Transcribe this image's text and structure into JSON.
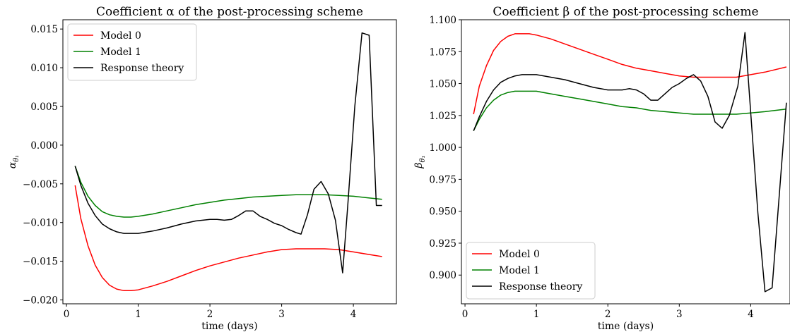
{
  "chart_data": [
    {
      "type": "line",
      "title": "Coefficient α of the post-processing scheme",
      "xlabel": "time (days)",
      "ylabel": "α",
      "ylabel_sub": "θ₁",
      "xlim": [
        -0.05,
        4.6
      ],
      "ylim": [
        -0.0205,
        0.0162
      ],
      "xticks": [
        0,
        1,
        2,
        3,
        4
      ],
      "yticks": [
        -0.02,
        -0.015,
        -0.01,
        -0.005,
        0.0,
        0.005,
        0.01,
        0.015
      ],
      "ytick_labels": [
        "−0.020",
        "−0.015",
        "−0.010",
        "−0.005",
        "0.000",
        "0.005",
        "0.010",
        "0.015"
      ],
      "legend_position": "top-left",
      "series": [
        {
          "name": "Model 0",
          "color": "#ff0000",
          "x": [
            0.12,
            0.2,
            0.3,
            0.4,
            0.5,
            0.6,
            0.7,
            0.8,
            0.9,
            1.0,
            1.2,
            1.4,
            1.6,
            1.8,
            2.0,
            2.2,
            2.4,
            2.6,
            2.8,
            3.0,
            3.2,
            3.4,
            3.6,
            3.8,
            4.0,
            4.2,
            4.4
          ],
          "y": [
            -0.0052,
            -0.0095,
            -0.013,
            -0.0155,
            -0.0171,
            -0.0181,
            -0.0186,
            -0.0188,
            -0.0188,
            -0.0187,
            -0.0182,
            -0.0176,
            -0.0169,
            -0.0162,
            -0.0156,
            -0.0151,
            -0.0146,
            -0.0142,
            -0.0138,
            -0.0135,
            -0.0134,
            -0.0134,
            -0.0134,
            -0.0135,
            -0.0138,
            -0.0141,
            -0.0144
          ]
        },
        {
          "name": "Model 1",
          "color": "#008000",
          "x": [
            0.12,
            0.2,
            0.3,
            0.4,
            0.5,
            0.6,
            0.7,
            0.8,
            0.9,
            1.0,
            1.2,
            1.4,
            1.6,
            1.8,
            2.0,
            2.2,
            2.4,
            2.6,
            2.8,
            3.0,
            3.2,
            3.4,
            3.6,
            3.8,
            4.0,
            4.2,
            4.4
          ],
          "y": [
            -0.0027,
            -0.0048,
            -0.0066,
            -0.0078,
            -0.0086,
            -0.009,
            -0.0092,
            -0.0093,
            -0.0093,
            -0.0092,
            -0.0089,
            -0.0085,
            -0.0081,
            -0.0077,
            -0.0074,
            -0.0071,
            -0.0069,
            -0.0067,
            -0.0066,
            -0.0065,
            -0.0064,
            -0.0064,
            -0.0064,
            -0.0065,
            -0.0066,
            -0.0068,
            -0.007
          ]
        },
        {
          "name": "Response theory",
          "color": "#000000",
          "x": [
            0.12,
            0.2,
            0.3,
            0.4,
            0.5,
            0.6,
            0.7,
            0.8,
            0.9,
            1.0,
            1.2,
            1.4,
            1.6,
            1.8,
            2.0,
            2.1,
            2.2,
            2.3,
            2.4,
            2.5,
            2.6,
            2.7,
            2.8,
            2.9,
            3.0,
            3.1,
            3.2,
            3.27,
            3.36,
            3.45,
            3.55,
            3.65,
            3.75,
            3.85,
            3.92,
            4.02,
            4.12,
            4.22,
            4.32,
            4.4
          ],
          "y": [
            -0.0027,
            -0.0052,
            -0.0075,
            -0.0091,
            -0.0102,
            -0.0108,
            -0.0112,
            -0.0114,
            -0.0114,
            -0.0114,
            -0.0111,
            -0.0107,
            -0.0102,
            -0.0098,
            -0.0096,
            -0.0096,
            -0.0097,
            -0.0096,
            -0.0091,
            -0.0085,
            -0.0085,
            -0.0092,
            -0.0096,
            -0.0101,
            -0.0104,
            -0.0109,
            -0.0113,
            -0.0115,
            -0.009,
            -0.0057,
            -0.0047,
            -0.0063,
            -0.0097,
            -0.0165,
            -0.008,
            0.005,
            0.0145,
            0.0142,
            -0.0078,
            -0.0078
          ]
        }
      ]
    },
    {
      "type": "line",
      "title": "Coefficient β of the post-processing scheme",
      "xlabel": "time (days)",
      "ylabel": "β",
      "ylabel_sub": "θ₁",
      "xlim": [
        -0.05,
        4.55
      ],
      "ylim": [
        0.8775,
        1.1
      ],
      "xticks": [
        0,
        1,
        2,
        3,
        4
      ],
      "yticks": [
        0.9,
        0.925,
        0.95,
        0.975,
        1.0,
        1.025,
        1.05,
        1.075,
        1.1
      ],
      "ytick_labels": [
        "0.900",
        "0.925",
        "0.950",
        "0.975",
        "1.000",
        "1.025",
        "1.050",
        "1.075",
        "1.100"
      ],
      "legend_position": "bottom-left",
      "series": [
        {
          "name": "Model 0",
          "color": "#ff0000",
          "x": [
            0.12,
            0.2,
            0.3,
            0.4,
            0.5,
            0.6,
            0.7,
            0.8,
            0.9,
            1.0,
            1.2,
            1.4,
            1.6,
            1.8,
            2.0,
            2.2,
            2.4,
            2.6,
            2.8,
            3.0,
            3.2,
            3.4,
            3.6,
            3.8,
            4.0,
            4.2,
            4.5
          ],
          "y": [
            1.026,
            1.048,
            1.064,
            1.076,
            1.083,
            1.087,
            1.089,
            1.089,
            1.089,
            1.088,
            1.085,
            1.081,
            1.077,
            1.073,
            1.069,
            1.065,
            1.062,
            1.06,
            1.058,
            1.056,
            1.055,
            1.055,
            1.055,
            1.055,
            1.057,
            1.059,
            1.063
          ]
        },
        {
          "name": "Model 1",
          "color": "#008000",
          "x": [
            0.12,
            0.2,
            0.3,
            0.4,
            0.5,
            0.6,
            0.7,
            0.8,
            0.9,
            1.0,
            1.2,
            1.4,
            1.6,
            1.8,
            2.0,
            2.2,
            2.4,
            2.6,
            2.8,
            3.0,
            3.2,
            3.4,
            3.6,
            3.8,
            4.0,
            4.2,
            4.5
          ],
          "y": [
            1.013,
            1.022,
            1.031,
            1.037,
            1.041,
            1.043,
            1.044,
            1.044,
            1.044,
            1.044,
            1.042,
            1.04,
            1.038,
            1.036,
            1.034,
            1.032,
            1.031,
            1.029,
            1.028,
            1.027,
            1.026,
            1.026,
            1.026,
            1.026,
            1.027,
            1.028,
            1.03
          ]
        },
        {
          "name": "Response theory",
          "color": "#000000",
          "x": [
            0.12,
            0.2,
            0.3,
            0.4,
            0.5,
            0.6,
            0.7,
            0.8,
            0.9,
            1.0,
            1.2,
            1.4,
            1.6,
            1.8,
            2.0,
            2.1,
            2.2,
            2.3,
            2.4,
            2.5,
            2.6,
            2.7,
            2.8,
            2.9,
            3.0,
            3.1,
            3.2,
            3.3,
            3.4,
            3.5,
            3.6,
            3.7,
            3.82,
            3.92,
            4.1,
            4.2,
            4.3,
            4.5
          ],
          "y": [
            1.013,
            1.024,
            1.036,
            1.045,
            1.051,
            1.054,
            1.056,
            1.057,
            1.057,
            1.057,
            1.055,
            1.053,
            1.05,
            1.047,
            1.045,
            1.045,
            1.045,
            1.046,
            1.045,
            1.042,
            1.037,
            1.037,
            1.042,
            1.047,
            1.05,
            1.054,
            1.057,
            1.052,
            1.04,
            1.02,
            1.015,
            1.025,
            1.048,
            1.09,
            0.949,
            0.887,
            0.89,
            1.035
          ]
        }
      ]
    }
  ]
}
